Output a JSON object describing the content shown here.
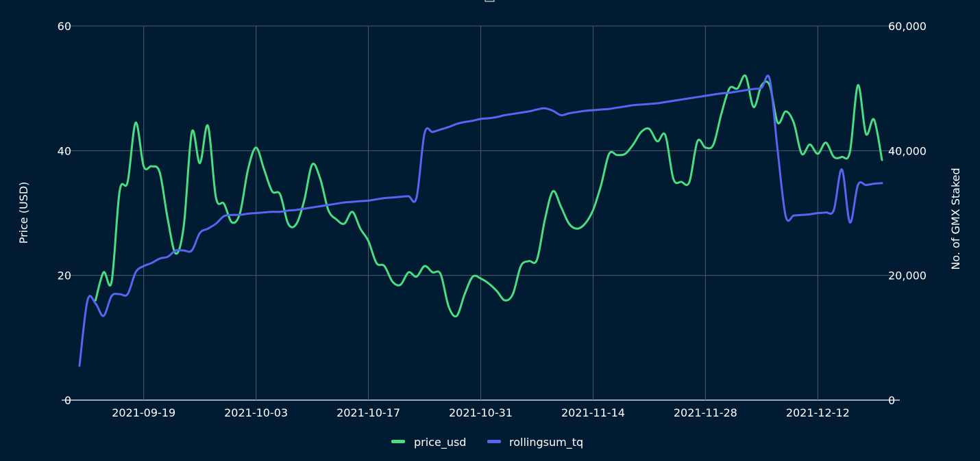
{
  "chart_data": {
    "type": "line",
    "title": "",
    "xlabel": "",
    "ylabel": "Price (USD)",
    "y2label": "No. of GMX Staked",
    "ylim": [
      0,
      60
    ],
    "y2lim": [
      0,
      60000
    ],
    "yticks": [
      "0",
      "20",
      "40",
      "60"
    ],
    "y2ticks": [
      "0",
      "20,000",
      "40,000",
      "60,000"
    ],
    "xticks": [
      "2021-09-19",
      "2021-10-03",
      "2021-10-17",
      "2021-10-31",
      "2021-11-14",
      "2021-11-28",
      "2021-12-12"
    ],
    "grid": true,
    "legend_position": "bottom",
    "x": [
      "2021-09-11",
      "2021-09-12",
      "2021-09-13",
      "2021-09-14",
      "2021-09-15",
      "2021-09-16",
      "2021-09-17",
      "2021-09-18",
      "2021-09-19",
      "2021-09-20",
      "2021-09-21",
      "2021-09-22",
      "2021-09-23",
      "2021-09-24",
      "2021-09-25",
      "2021-09-26",
      "2021-09-27",
      "2021-09-28",
      "2021-09-29",
      "2021-09-30",
      "2021-10-01",
      "2021-10-02",
      "2021-10-03",
      "2021-10-04",
      "2021-10-05",
      "2021-10-06",
      "2021-10-07",
      "2021-10-08",
      "2021-10-09",
      "2021-10-10",
      "2021-10-11",
      "2021-10-12",
      "2021-10-13",
      "2021-10-14",
      "2021-10-15",
      "2021-10-16",
      "2021-10-17",
      "2021-10-18",
      "2021-10-19",
      "2021-10-20",
      "2021-10-21",
      "2021-10-22",
      "2021-10-23",
      "2021-10-24",
      "2021-10-25",
      "2021-10-26",
      "2021-10-27",
      "2021-10-28",
      "2021-10-29",
      "2021-10-30",
      "2021-10-31",
      "2021-11-01",
      "2021-11-02",
      "2021-11-03",
      "2021-11-04",
      "2021-11-05",
      "2021-11-06",
      "2021-11-07",
      "2021-11-08",
      "2021-11-09",
      "2021-11-10",
      "2021-11-11",
      "2021-11-12",
      "2021-11-13",
      "2021-11-14",
      "2021-11-15",
      "2021-11-16",
      "2021-11-17",
      "2021-11-18",
      "2021-11-19",
      "2021-11-20",
      "2021-11-21",
      "2021-11-22",
      "2021-11-23",
      "2021-11-24",
      "2021-11-25",
      "2021-11-26",
      "2021-11-27",
      "2021-11-28",
      "2021-11-29",
      "2021-11-30",
      "2021-12-01",
      "2021-12-02",
      "2021-12-03",
      "2021-12-04",
      "2021-12-05",
      "2021-12-06",
      "2021-12-07",
      "2021-12-08",
      "2021-12-09",
      "2021-12-10",
      "2021-12-11",
      "2021-12-12",
      "2021-12-13",
      "2021-12-14",
      "2021-12-15",
      "2021-12-16",
      "2021-12-17",
      "2021-12-18",
      "2021-12-19",
      "2021-12-20"
    ],
    "series": [
      {
        "name": "price_usd",
        "axis": "left",
        "color": "#4ade80",
        "values": [
          null,
          null,
          16,
          20.5,
          19,
          33.5,
          35,
          44.5,
          37.5,
          37.5,
          36.5,
          29,
          23.5,
          28,
          43,
          38,
          44,
          32.5,
          31.5,
          28.5,
          30,
          37,
          40.5,
          37,
          33.5,
          33,
          28.3,
          28.2,
          32,
          37.8,
          35.5,
          30.5,
          29,
          28.3,
          30.2,
          27.5,
          25.5,
          22,
          21.5,
          19,
          18.5,
          20.5,
          19.8,
          21.5,
          20.5,
          20.2,
          15,
          13.5,
          17,
          19.8,
          19.5,
          18.7,
          17.5,
          16,
          17,
          21.5,
          22.3,
          22.5,
          29,
          33.5,
          31,
          28.3,
          27.5,
          28.3,
          30.5,
          34.5,
          39.5,
          39.3,
          39.5,
          41,
          43,
          43.5,
          41.5,
          42.5,
          35.5,
          35,
          35,
          41.5,
          40.5,
          41,
          46,
          50,
          50,
          52,
          47,
          50.5,
          50.5,
          44.5,
          46.3,
          44.5,
          39.5,
          41,
          39.5,
          41.3,
          39,
          39,
          39.8,
          50.5,
          42.7,
          45,
          38.5
        ]
      },
      {
        "name": "rollingsum_tq",
        "axis": "right",
        "color": "#5865f2",
        "values": [
          5500,
          16000,
          15500,
          13500,
          16700,
          17000,
          17000,
          20500,
          21500,
          22000,
          22700,
          23000,
          24000,
          24000,
          24000,
          26800,
          27500,
          28300,
          29500,
          29700,
          29700,
          29900,
          30000,
          30100,
          30200,
          30200,
          30400,
          30500,
          30700,
          30900,
          31100,
          31300,
          31500,
          31700,
          31800,
          31900,
          32000,
          32200,
          32400,
          32500,
          32600,
          32700,
          32500,
          42800,
          43000,
          43400,
          43800,
          44300,
          44600,
          44800,
          45100,
          45200,
          45400,
          45700,
          45900,
          46100,
          46300,
          46600,
          46800,
          46400,
          45700,
          46000,
          46200,
          46400,
          46500,
          46600,
          46700,
          46900,
          47100,
          47300,
          47400,
          47500,
          47600,
          47800,
          48000,
          48200,
          48400,
          48600,
          48800,
          49000,
          49200,
          49300,
          49500,
          49700,
          49900,
          50100,
          51500,
          40000,
          29500,
          29600,
          29700,
          29800,
          30000,
          30100,
          30500,
          37000,
          28500,
          34500,
          34500,
          34700,
          34800
        ]
      }
    ]
  }
}
